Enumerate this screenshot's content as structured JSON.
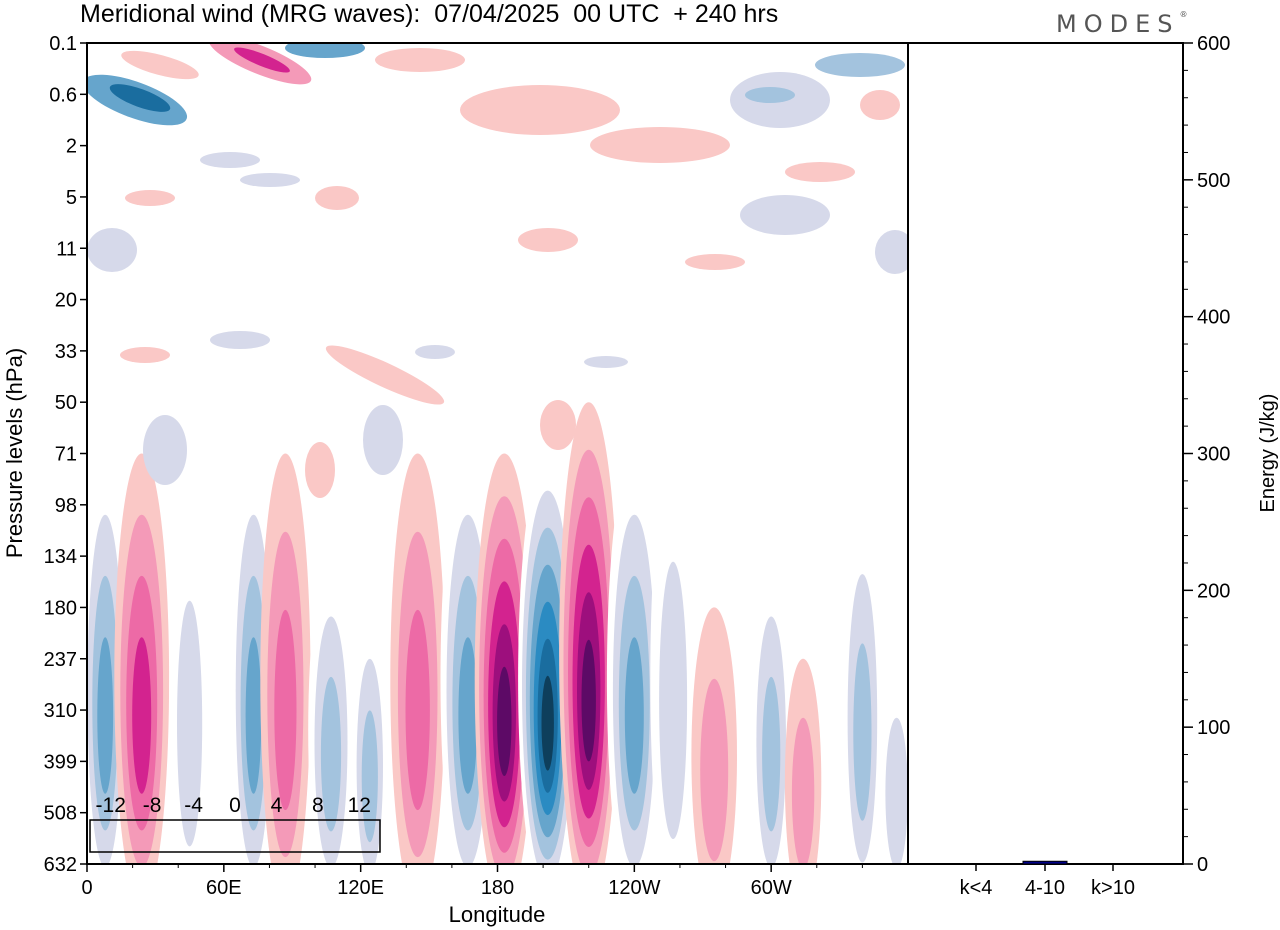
{
  "header": {
    "title": "Meridional wind (MRG waves):  07/04/2025  00 UTC  + 240 hrs",
    "logo": "MODES",
    "logo_mark": "®"
  },
  "chart_data": [
    {
      "type": "heatmap",
      "title": "Meridional wind (MRG waves):  07/04/2025  00 UTC  + 240 hrs",
      "xlabel": "Longitude",
      "ylabel": "Pressure levels (hPa)",
      "x_ticks": [
        "0",
        "60E",
        "120E",
        "180",
        "120W",
        "60W"
      ],
      "y_ticks": [
        "0.1",
        "0.6",
        "2",
        "5",
        "11",
        "20",
        "33",
        "50",
        "71",
        "98",
        "134",
        "180",
        "237",
        "310",
        "399",
        "508",
        "632"
      ],
      "colorbar": {
        "labels": [
          "-12",
          "-8",
          "-4",
          "0",
          "4",
          "8",
          "12"
        ],
        "colors": [
          "#0e3f5c",
          "#1a6d9f",
          "#2b8bc2",
          "#66a5cc",
          "#a3c3de",
          "#d6d9ea",
          "#ffffff",
          "#ffffff",
          "#fac8c6",
          "#f49ab8",
          "#ed6aa6",
          "#d3238f",
          "#9d0f7d",
          "#5d0a66"
        ]
      },
      "bands": [
        {
          "lon": 8,
          "p_top": 71,
          "p_bottom": 632,
          "peak": -8,
          "width_deg": 10
        },
        {
          "lon": 24,
          "p_top": 71,
          "p_bottom": 632,
          "peak": 8,
          "width_deg": 12
        },
        {
          "lon": 45,
          "p_top": 98,
          "p_bottom": 632,
          "peak": -4,
          "width_deg": 9
        },
        {
          "lon": 73,
          "p_top": 71,
          "p_bottom": 632,
          "peak": -8,
          "width_deg": 10
        },
        {
          "lon": 87,
          "p_top": 71,
          "p_bottom": 632,
          "peak": 6,
          "width_deg": 11
        },
        {
          "lon": 107,
          "p_top": 134,
          "p_bottom": 632,
          "peak": -6,
          "width_deg": 10
        },
        {
          "lon": 124,
          "p_top": 180,
          "p_bottom": 632,
          "peak": -6,
          "width_deg": 8
        },
        {
          "lon": 145,
          "p_top": 71,
          "p_bottom": 632,
          "peak": 6,
          "width_deg": 12
        },
        {
          "lon": 167,
          "p_top": 71,
          "p_bottom": 632,
          "peak": -8,
          "width_deg": 12
        },
        {
          "lon": 183,
          "p_top": 71,
          "p_bottom": 632,
          "peak": 12,
          "width_deg": 13
        },
        {
          "lon": 202,
          "p_top": 71,
          "p_bottom": 632,
          "peak": -14,
          "width_deg": 13
        },
        {
          "lon": 220,
          "p_top": 50,
          "p_bottom": 632,
          "peak": 11,
          "width_deg": 13
        },
        {
          "lon": 240,
          "p_top": 71,
          "p_bottom": 632,
          "peak": -8,
          "width_deg": 12
        },
        {
          "lon": 257,
          "p_top": 71,
          "p_bottom": 632,
          "peak": -4,
          "width_deg": 10
        },
        {
          "lon": 275,
          "p_top": 180,
          "p_bottom": 632,
          "peak": 4,
          "width_deg": 10
        },
        {
          "lon": 300,
          "p_top": 134,
          "p_bottom": 632,
          "peak": -6,
          "width_deg": 9
        },
        {
          "lon": 314,
          "p_top": 237,
          "p_bottom": 632,
          "peak": 4,
          "width_deg": 8
        },
        {
          "lon": 340,
          "p_top": 98,
          "p_bottom": 632,
          "peak": -6,
          "width_deg": 9
        },
        {
          "lon": 355,
          "p_top": 237,
          "p_bottom": 632,
          "peak": -4,
          "width_deg": 8
        }
      ]
    },
    {
      "type": "bar",
      "ylabel": "Energy (J/kg)",
      "categories": [
        "k<4",
        "4-10",
        "k>10"
      ],
      "values": [
        0,
        2,
        0
      ],
      "ylim": [
        0,
        600
      ],
      "y_ticks": [
        "0",
        "100",
        "200",
        "300",
        "400",
        "500",
        "600"
      ],
      "bar_color": "#00008b"
    }
  ]
}
